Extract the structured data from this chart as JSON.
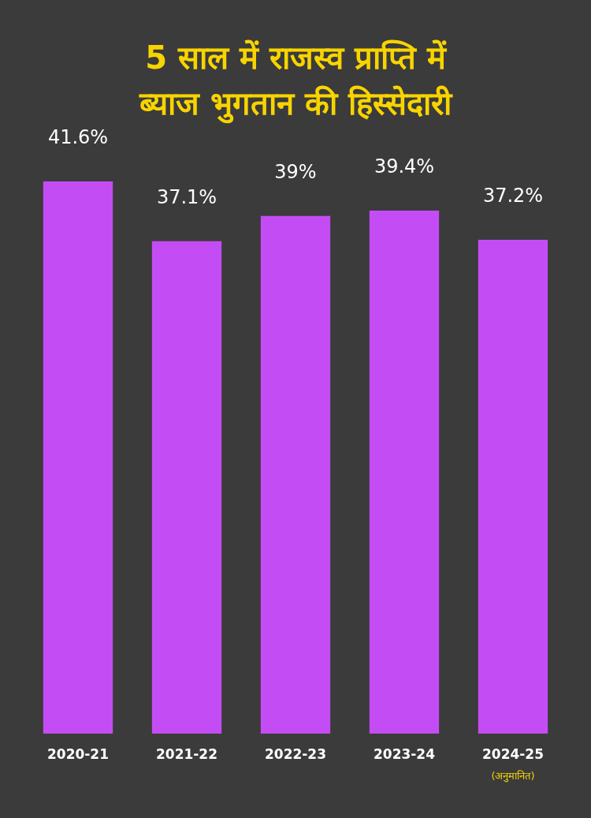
{
  "chart_data": {
    "type": "bar",
    "title": "5 साल में राजस्व प्राप्ति में\nब्याज भुगतान की हिस्सेदारी",
    "categories": [
      "2020-21",
      "2021-22",
      "2022-23",
      "2023-24",
      "2024-25"
    ],
    "values": [
      41.6,
      37.1,
      39,
      39.4,
      37.2
    ],
    "value_labels": [
      "41.6%",
      "37.1%",
      "39%",
      "39.4%",
      "37.2%"
    ],
    "color": "#c44cf4",
    "annotations": [
      "(अनुमानित)"
    ]
  }
}
